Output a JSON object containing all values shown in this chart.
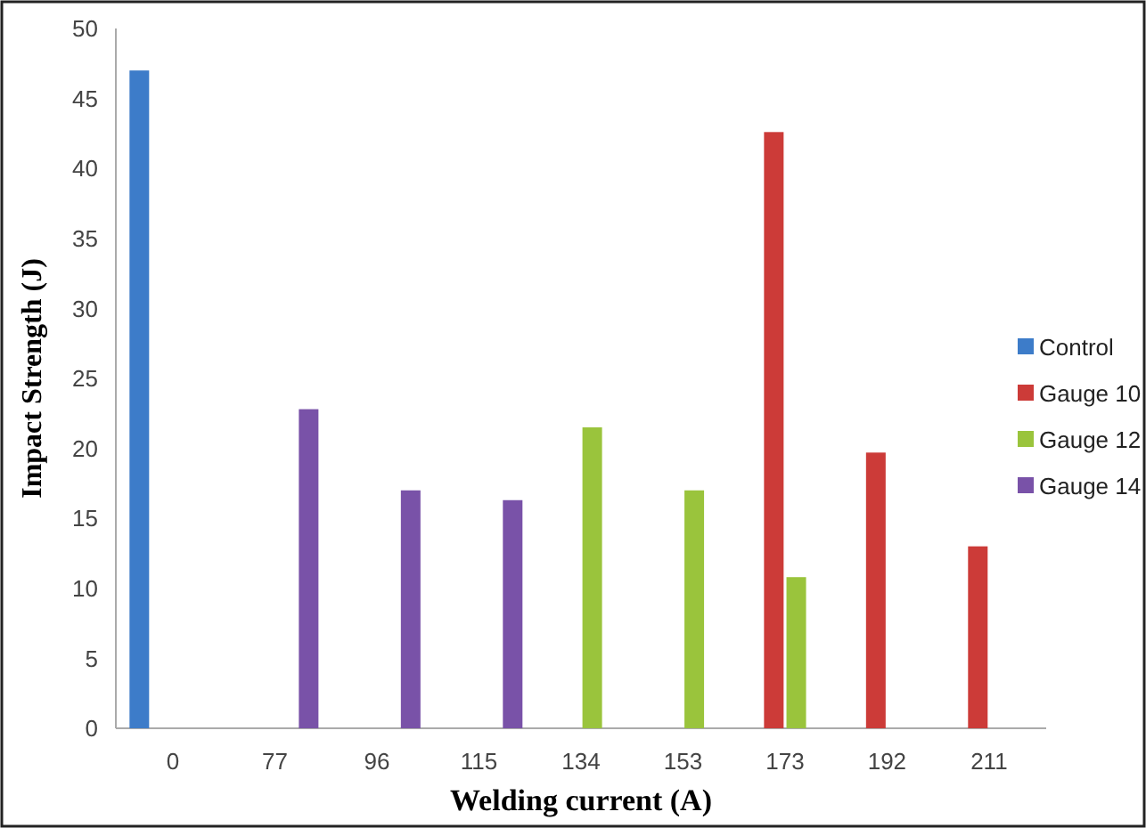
{
  "chart_data": {
    "type": "bar",
    "xlabel": "Welding current (A)",
    "ylabel": "Impact Strength (J)",
    "categories": [
      "0",
      "77",
      "96",
      "115",
      "134",
      "153",
      "173",
      "192",
      "211"
    ],
    "series": [
      {
        "name": "Control",
        "color": "#3d7cc9",
        "values": [
          47,
          null,
          null,
          null,
          null,
          null,
          null,
          null,
          null
        ]
      },
      {
        "name": "Gauge 10",
        "color": "#cc3b38",
        "values": [
          null,
          null,
          null,
          null,
          null,
          null,
          42.6,
          19.7,
          13.0
        ]
      },
      {
        "name": "Gauge 12",
        "color": "#9ac43c",
        "values": [
          null,
          null,
          null,
          null,
          21.5,
          17.0,
          10.8,
          null,
          null
        ]
      },
      {
        "name": "Gauge 14",
        "color": "#7952a8",
        "values": [
          null,
          22.8,
          17.0,
          16.3,
          null,
          null,
          null,
          null,
          null
        ]
      }
    ],
    "ylim": [
      0,
      50
    ],
    "yticks": [
      0,
      5,
      10,
      15,
      20,
      25,
      30,
      35,
      40,
      45,
      50
    ],
    "grid": false,
    "legend": "right"
  }
}
